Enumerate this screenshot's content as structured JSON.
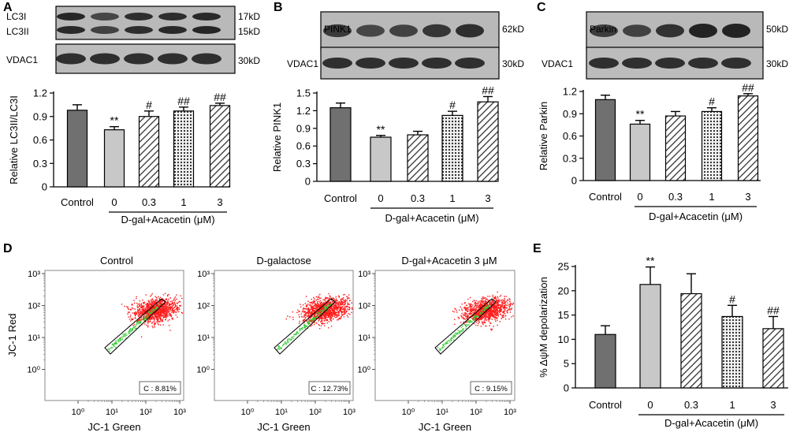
{
  "panel_letters": [
    "A",
    "B",
    "C",
    "D",
    "E"
  ],
  "blots": {
    "A": {
      "top_labels": [
        "LC3I",
        "LC3II"
      ],
      "top_sizes": [
        "17kD",
        "15kD"
      ],
      "loading_label": "VDAC1",
      "loading_size": "30kD"
    },
    "B": {
      "top_labels": [
        "PINK1"
      ],
      "top_sizes": [
        "62kD"
      ],
      "loading_label": "VDAC1",
      "loading_size": "30kD"
    },
    "C": {
      "top_labels": [
        "Parkin"
      ],
      "top_sizes": [
        "50kD"
      ],
      "loading_label": "VDAC1",
      "loading_size": "30kD"
    }
  },
  "flow": {
    "titles": [
      "Control",
      "D-galactose",
      "D-gal+Acacetin  3 μM"
    ],
    "gates": [
      "C : 8.81%",
      "C : 12.73%",
      "C : 9.15%"
    ],
    "xlabel": "JC-1 Green",
    "ylabel": "JC-1 Red",
    "x_ticks": [
      "10⁰",
      "10¹",
      "10²",
      "10³"
    ],
    "y_ticks": [
      "10⁰",
      "10¹",
      "10²",
      "10³"
    ],
    "event_color": "#ff1a1a",
    "gate_event_color": "#33cc33"
  },
  "colors": {
    "control": "#707070",
    "dgal": "#c8c8c8",
    "hatch": "#333333",
    "dots": "#222222"
  },
  "chart_data": [
    {
      "panel": "A",
      "type": "bar",
      "ylabel": "Relative LC3II/LC3I",
      "categories": [
        "Control",
        "0",
        "0.3",
        "1",
        "3"
      ],
      "values": [
        0.98,
        0.73,
        0.9,
        0.97,
        1.04
      ],
      "errors": [
        0.07,
        0.04,
        0.07,
        0.05,
        0.03
      ],
      "annotations": [
        "",
        "**",
        "#",
        "##",
        "##"
      ],
      "ylim": [
        0,
        1.2
      ],
      "yticks": [
        "0",
        "0.3",
        "0.6",
        "0.9",
        "1.2"
      ],
      "group_label": "D-gal+Acacetin (μM)"
    },
    {
      "panel": "B",
      "type": "bar",
      "ylabel": "Relative PINK1",
      "categories": [
        "Control",
        "0",
        "0.3",
        "1",
        "3"
      ],
      "values": [
        1.25,
        0.75,
        0.79,
        1.12,
        1.35
      ],
      "errors": [
        0.08,
        0.03,
        0.06,
        0.07,
        0.09
      ],
      "annotations": [
        "",
        "**",
        "",
        "#",
        "##"
      ],
      "ylim": [
        0,
        1.5
      ],
      "yticks": [
        "0",
        "0.3",
        "0.6",
        "0.9",
        "1.2",
        "1.5"
      ],
      "group_label": "D-gal+Acacetin (μM)"
    },
    {
      "panel": "C",
      "type": "bar",
      "ylabel": "Relative Parkin",
      "categories": [
        "Control",
        "0",
        "0.3",
        "1",
        "3"
      ],
      "values": [
        1.09,
        0.76,
        0.87,
        0.93,
        1.14
      ],
      "errors": [
        0.06,
        0.05,
        0.06,
        0.05,
        0.03
      ],
      "annotations": [
        "",
        "**",
        "",
        "#",
        "##"
      ],
      "ylim": [
        0,
        1.2
      ],
      "yticks": [
        "0",
        "0.3",
        "0.6",
        "0.9",
        "1.2"
      ],
      "group_label": "D-gal+Acacetin (μM)"
    },
    {
      "panel": "E",
      "type": "bar",
      "ylabel": "% ΔψM depolarization",
      "categories": [
        "Control",
        "0",
        "0.3",
        "1",
        "3"
      ],
      "values": [
        11.0,
        21.3,
        19.4,
        14.7,
        12.2
      ],
      "errors": [
        1.8,
        3.6,
        4.1,
        2.3,
        2.5
      ],
      "annotations": [
        "",
        "**",
        "",
        "#",
        "##"
      ],
      "ylim": [
        0,
        25
      ],
      "yticks": [
        "0",
        "5",
        "10",
        "15",
        "20",
        "25"
      ],
      "group_label": "D-gal+Acacetin (μM)"
    }
  ]
}
